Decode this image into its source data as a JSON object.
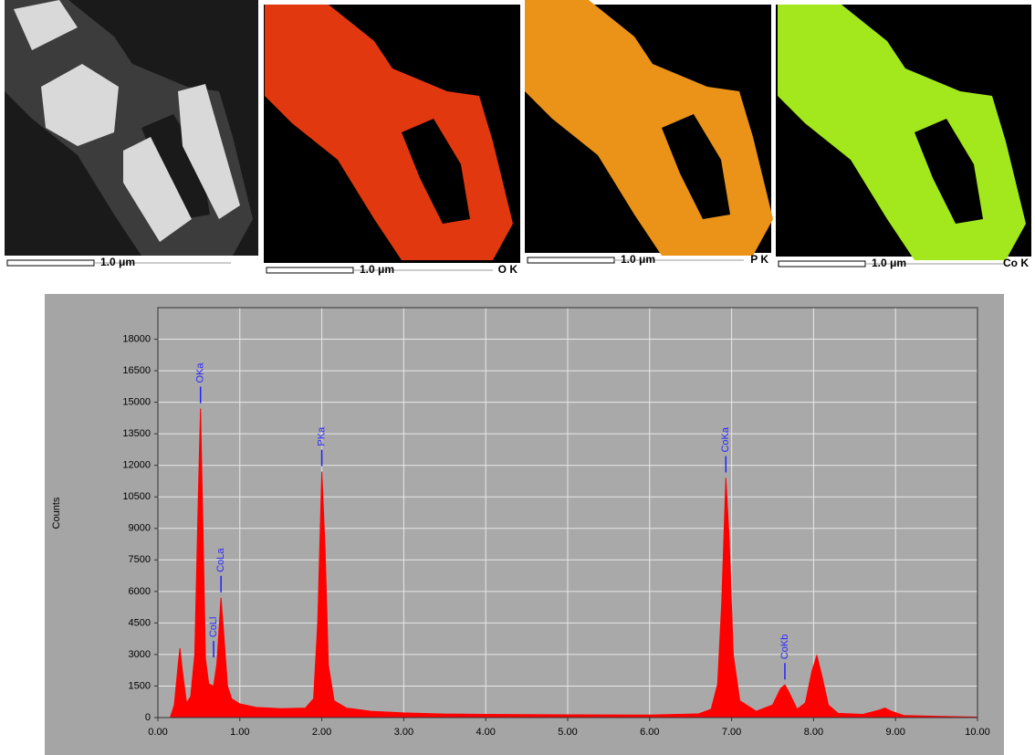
{
  "panels": [
    {
      "scale": "1.0 μm"
    },
    {
      "scale": "1.0 μm",
      "element": "O K"
    },
    {
      "scale": "1.0 μm",
      "element": "P K"
    },
    {
      "scale": "1.0 μm",
      "element": "Co K"
    }
  ],
  "chart_data": {
    "type": "area",
    "ylabel": "Counts",
    "color": "#ff0000",
    "grid": true,
    "xlim": [
      0,
      10
    ],
    "ylim": [
      0,
      19500
    ],
    "xticks": [
      {
        "value": 0,
        "label": "0.00"
      },
      {
        "value": 1,
        "label": "1.00"
      },
      {
        "value": 2,
        "label": "2.00"
      },
      {
        "value": 3,
        "label": "3.00"
      },
      {
        "value": 4,
        "label": "4.00"
      },
      {
        "value": 5,
        "label": "5.00"
      },
      {
        "value": 6,
        "label": "6.00"
      },
      {
        "value": 7,
        "label": "7.00"
      },
      {
        "value": 8,
        "label": "8.00"
      },
      {
        "value": 9,
        "label": "9.00"
      },
      {
        "value": 10,
        "label": "10.00"
      }
    ],
    "yticks": [
      0,
      1500,
      3000,
      4500,
      6000,
      7500,
      9000,
      10500,
      12000,
      13500,
      15000,
      16500,
      18000
    ],
    "x": [
      0.15,
      0.2,
      0.25,
      0.27,
      0.3,
      0.35,
      0.4,
      0.45,
      0.49,
      0.52,
      0.55,
      0.58,
      0.62,
      0.68,
      0.72,
      0.77,
      0.8,
      0.85,
      0.9,
      1.0,
      1.2,
      1.5,
      1.8,
      1.9,
      1.95,
      2.0,
      2.04,
      2.08,
      2.15,
      2.3,
      2.6,
      3.0,
      3.5,
      4.0,
      5.0,
      6.0,
      6.6,
      6.75,
      6.83,
      6.88,
      6.93,
      6.97,
      7.02,
      7.1,
      7.3,
      7.5,
      7.6,
      7.65,
      7.7,
      7.8,
      7.9,
      7.98,
      8.04,
      8.1,
      8.18,
      8.3,
      8.6,
      8.8,
      8.87,
      8.95,
      9.1,
      9.5,
      10.0
    ],
    "values": [
      0,
      600,
      2600,
      3300,
      2200,
      700,
      1000,
      3000,
      10000,
      14700,
      9000,
      2800,
      1600,
      1500,
      2600,
      5700,
      4200,
      1500,
      900,
      650,
      480,
      420,
      450,
      900,
      4500,
      11700,
      8000,
      2500,
      800,
      450,
      300,
      220,
      170,
      150,
      130,
      120,
      180,
      400,
      1600,
      5500,
      11400,
      8500,
      3000,
      800,
      300,
      600,
      1400,
      1550,
      1200,
      400,
      700,
      2200,
      2950,
      2000,
      600,
      200,
      150,
      350,
      450,
      300,
      100,
      60,
      20
    ],
    "annotations": [
      {
        "text": "OKa",
        "x": 0.52
      },
      {
        "text": "CoLl",
        "x": 0.68
      },
      {
        "text": "CoLa",
        "x": 0.77
      },
      {
        "text": "PKa",
        "x": 2.0
      },
      {
        "text": "CoKa",
        "x": 6.93
      },
      {
        "text": "CoKb",
        "x": 7.65
      }
    ]
  }
}
